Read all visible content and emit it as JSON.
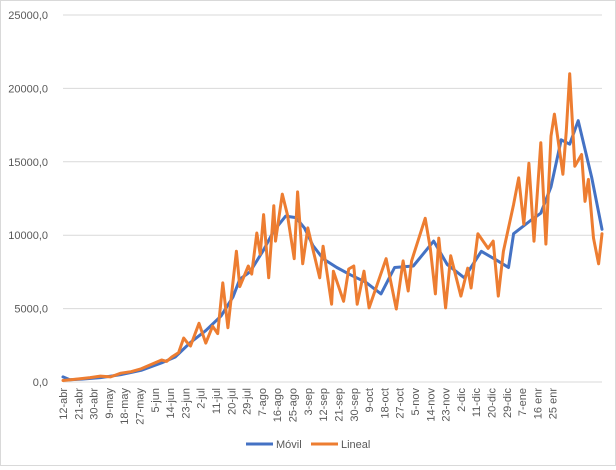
{
  "chart_data": {
    "type": "line",
    "title": "",
    "xlabel": "",
    "ylabel": "",
    "ylim": [
      0,
      25000
    ],
    "y_ticks": [
      "0,0",
      "5000,0",
      "10000,0",
      "15000,0",
      "20000,0",
      "25000,0"
    ],
    "y_tick_values": [
      0,
      5000,
      10000,
      15000,
      20000,
      25000
    ],
    "x_unit": "days since 12-abr",
    "x_max_day": 317,
    "x_tick_step_days": 9,
    "x_tick_labels": [
      "12-abr",
      "21-abr",
      "30-abr",
      "9-may",
      "18-may",
      "27-may",
      "5-jun",
      "14-jun",
      "23-jun",
      "2-jul",
      "11-jul",
      "20-jul",
      "29-jul",
      "7-ago",
      "16-ago",
      "25-ago",
      "3-sep",
      "12-sep",
      "21-sep",
      "30-sep",
      "9-oct",
      "18-oct",
      "27-oct",
      "5-nov",
      "14-nov",
      "23-nov",
      "2-dic",
      "11-dic",
      "20-dic",
      "29-dic",
      "7-ene",
      "16 enr",
      "25 enr"
    ],
    "grid": true,
    "legend_position": "bottom",
    "series": [
      {
        "name": "Móvil",
        "color": "#4472c4",
        "points": [
          [
            0,
            350
          ],
          [
            4,
            150
          ],
          [
            11,
            200
          ],
          [
            22,
            300
          ],
          [
            34,
            500
          ],
          [
            46,
            800
          ],
          [
            58,
            1300
          ],
          [
            66,
            1700
          ],
          [
            75,
            2700
          ],
          [
            84,
            3500
          ],
          [
            93,
            4500
          ],
          [
            100,
            5800
          ],
          [
            104,
            7000
          ],
          [
            110,
            7500
          ],
          [
            118,
            9000
          ],
          [
            124,
            10300
          ],
          [
            131,
            11300
          ],
          [
            137,
            11200
          ],
          [
            142,
            10500
          ],
          [
            147,
            9300
          ],
          [
            153,
            8400
          ],
          [
            161,
            7800
          ],
          [
            169,
            7300
          ],
          [
            178,
            6800
          ],
          [
            187,
            6000
          ],
          [
            195,
            7800
          ],
          [
            206,
            7900
          ],
          [
            218,
            9600
          ],
          [
            226,
            8000
          ],
          [
            236,
            7100
          ],
          [
            246,
            8900
          ],
          [
            255,
            8300
          ],
          [
            262,
            7800
          ],
          [
            265,
            10100
          ],
          [
            275,
            11000
          ],
          [
            281,
            11500
          ],
          [
            287,
            13300
          ],
          [
            293,
            16500
          ],
          [
            298,
            16200
          ],
          [
            303,
            17800
          ],
          [
            311,
            13900
          ],
          [
            317,
            10400
          ]
        ]
      },
      {
        "name": "Lineal",
        "color": "#ed7d31",
        "points": [
          [
            0,
            100
          ],
          [
            8,
            200
          ],
          [
            16,
            300
          ],
          [
            22,
            400
          ],
          [
            28,
            350
          ],
          [
            34,
            600
          ],
          [
            40,
            700
          ],
          [
            46,
            900
          ],
          [
            52,
            1200
          ],
          [
            58,
            1500
          ],
          [
            61,
            1400
          ],
          [
            64,
            1700
          ],
          [
            68,
            2000
          ],
          [
            71,
            3000
          ],
          [
            73,
            2700
          ],
          [
            75,
            2450
          ],
          [
            80,
            4000
          ],
          [
            84,
            2650
          ],
          [
            88,
            3800
          ],
          [
            91,
            3300
          ],
          [
            94,
            6750
          ],
          [
            97,
            3700
          ],
          [
            102,
            8900
          ],
          [
            104,
            6500
          ],
          [
            109,
            7900
          ],
          [
            111,
            7350
          ],
          [
            114,
            10150
          ],
          [
            116,
            8700
          ],
          [
            118,
            11400
          ],
          [
            121,
            7100
          ],
          [
            124,
            12000
          ],
          [
            125,
            9600
          ],
          [
            129,
            12800
          ],
          [
            132,
            11400
          ],
          [
            136,
            8400
          ],
          [
            138,
            12950
          ],
          [
            141,
            8050
          ],
          [
            144,
            10500
          ],
          [
            151,
            7100
          ],
          [
            153,
            9250
          ],
          [
            158,
            5300
          ],
          [
            159,
            7550
          ],
          [
            165,
            5500
          ],
          [
            168,
            7700
          ],
          [
            171,
            7900
          ],
          [
            173,
            5300
          ],
          [
            177,
            7550
          ],
          [
            180,
            5050
          ],
          [
            190,
            8400
          ],
          [
            196,
            4970
          ],
          [
            200,
            8250
          ],
          [
            203,
            6200
          ],
          [
            205,
            8250
          ],
          [
            213,
            11150
          ],
          [
            216,
            9100
          ],
          [
            219,
            6000
          ],
          [
            221,
            9800
          ],
          [
            225,
            5050
          ],
          [
            228,
            8600
          ],
          [
            234,
            5850
          ],
          [
            238,
            7750
          ],
          [
            240,
            6400
          ],
          [
            244,
            10100
          ],
          [
            250,
            9100
          ],
          [
            253,
            9600
          ],
          [
            256,
            5850
          ],
          [
            259,
            8900
          ],
          [
            265,
            12100
          ],
          [
            268,
            13900
          ],
          [
            271,
            10750
          ],
          [
            274,
            14900
          ],
          [
            277,
            9600
          ],
          [
            281,
            16300
          ],
          [
            284,
            9400
          ],
          [
            287,
            16750
          ],
          [
            289,
            18250
          ],
          [
            294,
            14150
          ],
          [
            296,
            17100
          ],
          [
            298,
            21000
          ],
          [
            301,
            14700
          ],
          [
            305,
            15500
          ],
          [
            307,
            12300
          ],
          [
            309,
            13800
          ],
          [
            312,
            9800
          ],
          [
            315,
            8050
          ],
          [
            317,
            10100
          ]
        ]
      }
    ]
  }
}
